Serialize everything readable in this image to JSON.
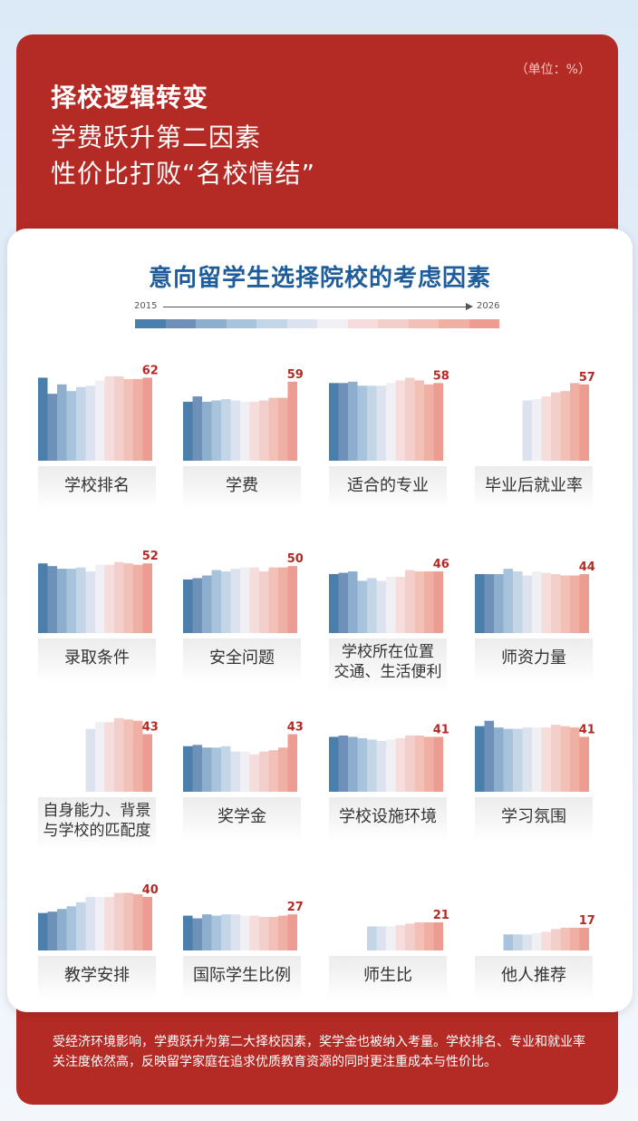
{
  "header": {
    "unit": "（单位：%）",
    "line1": "择校逻辑转变",
    "line2": "学费跃升第二因素",
    "line3": "性价比打败“名校情结”"
  },
  "legend": {
    "start": "2015",
    "end": "2026",
    "colors": [
      "#4a7fab",
      "#6f90b8",
      "#8eaecd",
      "#a8c4dd",
      "#c3d6e8",
      "#dde3ee",
      "#f0f0f4",
      "#f6dddc",
      "#f3cfcb",
      "#f2c0b6",
      "#efb0a3",
      "#ec9c91"
    ]
  },
  "chart_data": {
    "type": "bar",
    "title": "意向留学生选择院校的考虑因素",
    "unit": "%",
    "x_range": [
      "2015",
      "2026"
    ],
    "series_colors": [
      "#4a7fab",
      "#6f90b8",
      "#8eaecd",
      "#a8c4dd",
      "#c3d6e8",
      "#dde3ee",
      "#f0f0f4",
      "#f6dddc",
      "#f3cfcb",
      "#f2c0b6",
      "#efb0a3",
      "#ec9c91"
    ],
    "factors": [
      {
        "label": "学校排名",
        "latest": "62",
        "values": [
          62,
          50,
          57,
          52,
          55,
          56,
          60,
          63,
          63,
          61,
          61,
          62
        ]
      },
      {
        "label": "学费",
        "latest": "59",
        "values": [
          44,
          48,
          44,
          45,
          46,
          45,
          44,
          44,
          45,
          47,
          47,
          59
        ]
      },
      {
        "label": "适合的专业",
        "latest": "58",
        "values": [
          58,
          58,
          59,
          56,
          56,
          56,
          58,
          60,
          62,
          60,
          57,
          58
        ]
      },
      {
        "label": "毕业后就业率",
        "latest": "57",
        "values": [
          null,
          null,
          null,
          null,
          null,
          45,
          46,
          48,
          51,
          52,
          58,
          57
        ]
      },
      {
        "label": "录取条件",
        "latest": "52",
        "values": [
          52,
          50,
          48,
          48,
          49,
          46,
          51,
          51,
          53,
          52,
          51,
          52
        ]
      },
      {
        "label": "安全问题",
        "latest": "50",
        "values": [
          40,
          41,
          43,
          47,
          46,
          48,
          49,
          49,
          46,
          49,
          49,
          50
        ]
      },
      {
        "label": "学校所在位置\n交通、生活便利",
        "latest": "46",
        "values": [
          44,
          45,
          46,
          39,
          41,
          39,
          42,
          42,
          47,
          46,
          46,
          46
        ]
      },
      {
        "label": "师资力量",
        "latest": "44",
        "values": [
          44,
          44,
          44,
          48,
          46,
          43,
          46,
          45,
          44,
          43,
          43,
          44
        ]
      },
      {
        "label": "自身能力、背景\n与学校的匹配度",
        "latest": "43",
        "values": [
          null,
          null,
          null,
          null,
          null,
          47,
          52,
          52,
          55,
          54,
          53,
          43
        ]
      },
      {
        "label": "奖学金",
        "latest": "43",
        "values": [
          34,
          35,
          33,
          33,
          34,
          30,
          30,
          28,
          30,
          31,
          33,
          43
        ]
      },
      {
        "label": "学校设施环境",
        "latest": "41",
        "values": [
          41,
          42,
          41,
          40,
          39,
          38,
          39,
          40,
          42,
          42,
          41,
          41
        ]
      },
      {
        "label": "学习氛围",
        "latest": "41",
        "values": [
          49,
          53,
          48,
          47,
          47,
          48,
          48,
          48,
          50,
          49,
          48,
          41
        ]
      },
      {
        "label": "教学安排",
        "latest": "40",
        "values": [
          28,
          29,
          31,
          33,
          36,
          40,
          40,
          40,
          43,
          43,
          42,
          40
        ]
      },
      {
        "label": "国际学生比例",
        "latest": "27",
        "values": [
          26,
          24,
          27,
          26,
          27,
          27,
          26,
          26,
          25,
          25,
          26,
          27
        ]
      },
      {
        "label": "师生比",
        "latest": "21",
        "values": [
          null,
          null,
          null,
          null,
          18,
          18,
          18,
          19,
          20,
          21,
          21,
          21
        ]
      },
      {
        "label": "他人推荐",
        "latest": "17",
        "values": [
          null,
          null,
          null,
          12,
          12,
          12,
          13,
          14,
          16,
          17,
          17,
          17
        ]
      }
    ]
  },
  "footer": {
    "text": "受经济环境影响，学费跃升为第二大择校因素，奖学金也被纳入考量。学校排名、专业和就业率关注度依然高，反映留学家庭在追求优质教育资源的同时更注重成本与性价比。"
  }
}
